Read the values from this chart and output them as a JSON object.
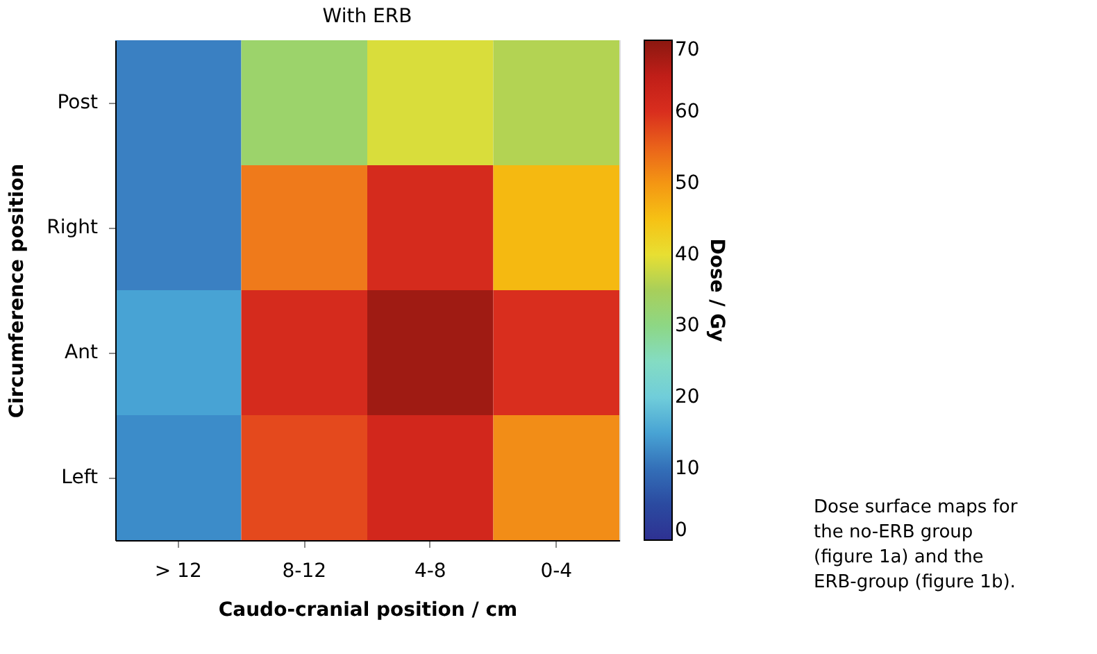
{
  "chart_data": {
    "type": "heatmap",
    "title": "With ERB",
    "xlabel": "Caudo-cranial position / cm",
    "ylabel": "Circumference position",
    "clabel": "Dose / Gy",
    "categories": [
      "> 12",
      "8-12",
      "4-8",
      "0-4"
    ],
    "y_categories": [
      "Post",
      "Right",
      "Ant",
      "Left"
    ],
    "cells": [
      [
        12,
        33,
        39,
        36
      ],
      [
        12,
        53,
        61,
        46
      ],
      [
        15,
        61,
        68,
        60
      ],
      [
        13,
        57,
        62,
        51
      ]
    ],
    "clim": [
      0,
      70
    ],
    "cticks": [
      0,
      10,
      20,
      30,
      40,
      50,
      60,
      70
    ],
    "annotations": [
      "Dose surface maps for the no-ERB group (figure 1a) and the ERB-group (figure 1b)."
    ]
  }
}
